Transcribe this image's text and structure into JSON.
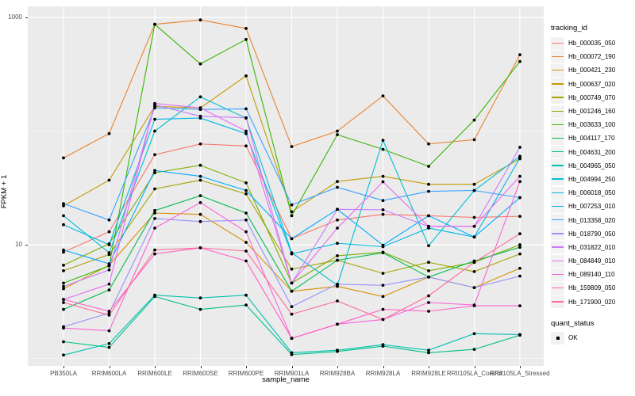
{
  "chart_data": {
    "type": "line",
    "title": "",
    "xlabel": "sample_name",
    "ylabel": "FPKM + 1",
    "y_scale": "log10",
    "ylim": [
      0.9,
      1300
    ],
    "grid": true,
    "legend_position": "right",
    "y_ticks": [
      {
        "label": "1000",
        "value": 1000
      },
      {
        "label": "10",
        "value": 10
      }
    ],
    "y_minor": [
      1,
      100
    ],
    "categories": [
      "PB350LA",
      "RRIM600LA",
      "RRIM600LE",
      "RRIM600SE",
      "RRIM600PE",
      "RRIM901LA",
      "RRIM928BA",
      "RRIM928LA",
      "RRIM928LE",
      "RRII105LA_Control",
      "RRII105LA_Stressed"
    ],
    "legend_title": "tracking_id",
    "series": [
      {
        "name": "Hb_000035_050",
        "color": "#F8766D",
        "values": [
          8.6,
          13,
          62,
          77,
          74,
          11.3,
          16.5,
          18.5,
          18,
          17.4,
          17.8
        ]
      },
      {
        "name": "Hb_000072_190",
        "color": "#EA8331",
        "values": [
          58,
          95,
          870,
          950,
          800,
          73,
          100,
          204,
          77,
          84,
          470
        ]
      },
      {
        "name": "Hb_000421_230",
        "color": "#D89000",
        "values": [
          4.1,
          6.6,
          19,
          18.5,
          10.5,
          3.9,
          4.3,
          3.5,
          5.2,
          4.2,
          6.2
        ]
      },
      {
        "name": "Hb_000637_020",
        "color": "#C09B00",
        "values": [
          22,
          37,
          165,
          160,
          306,
          19.5,
          36,
          40,
          34,
          34,
          57
        ]
      },
      {
        "name": "Hb_000749_070",
        "color": "#A3A500",
        "values": [
          5.9,
          8.2,
          31,
          37,
          28,
          6.1,
          7.3,
          5.6,
          7,
          5.8,
          8.3
        ]
      },
      {
        "name": "Hb_001246_160",
        "color": "#7CAE00",
        "values": [
          6.6,
          10.2,
          43,
          50,
          35,
          4.6,
          8,
          8.6,
          5.9,
          7,
          10
        ]
      },
      {
        "name": "Hb_003633_100",
        "color": "#39B600",
        "values": [
          4.6,
          6.5,
          870,
          390,
          640,
          18,
          93,
          69,
          49,
          125,
          410
        ]
      },
      {
        "name": "Hb_004117_170",
        "color": "#00BB4E",
        "values": [
          2.7,
          4,
          20,
          27,
          19,
          3.9,
          7.3,
          8.5,
          5.2,
          7.2,
          9.5
        ]
      },
      {
        "name": "Hb_004631_200",
        "color": "#00C087",
        "values": [
          1.4,
          1.25,
          3.5,
          2.7,
          2.95,
          1.08,
          1.15,
          1.28,
          1.12,
          1.2,
          1.6
        ]
      },
      {
        "name": "Hb_004965_050",
        "color": "#00C0B2",
        "values": [
          1.07,
          1.35,
          3.6,
          3.4,
          3.6,
          1.12,
          1.18,
          1.32,
          1.18,
          1.65,
          1.62
        ]
      },
      {
        "name": "Hb_004994_250",
        "color": "#00BFD3",
        "values": [
          18,
          8.5,
          100,
          200,
          130,
          8.5,
          4.4,
          83,
          9.8,
          30,
          60
        ]
      },
      {
        "name": "Hb_006018_050",
        "color": "#00B8E7",
        "values": [
          15,
          10,
          127,
          130,
          95,
          8.3,
          10.3,
          9.6,
          14,
          11.7,
          58
        ]
      },
      {
        "name": "Hb_007253_010",
        "color": "#00ACFC",
        "values": [
          9,
          6.8,
          45,
          40,
          30,
          11.3,
          20.5,
          9.9,
          18,
          11.7,
          26
        ]
      },
      {
        "name": "Hb_013358_020",
        "color": "#35A2FF",
        "values": [
          23,
          16.5,
          160,
          155,
          157,
          22.4,
          32,
          24.5,
          29.5,
          30,
          26
        ]
      },
      {
        "name": "Hb_018790_050",
        "color": "#9590FF",
        "values": [
          1.9,
          2.5,
          17,
          16,
          16.5,
          2.85,
          4.5,
          4.4,
          5.2,
          4.2,
          5.3
        ]
      },
      {
        "name": "Hb_031822_010",
        "color": "#C77CFF",
        "values": [
          4.3,
          6,
          170,
          135,
          131,
          4.6,
          20.5,
          20.3,
          14.5,
          14.5,
          72
        ]
      },
      {
        "name": "Hb_084849_010",
        "color": "#E76BF3",
        "values": [
          3.3,
          4.5,
          175,
          160,
          100,
          4.6,
          14,
          35.8,
          14.5,
          14.5,
          40
        ]
      },
      {
        "name": "Hb_089140_110",
        "color": "#FA62DB",
        "values": [
          1.85,
          1.75,
          14,
          23.5,
          13,
          1.5,
          2,
          2.2,
          3.1,
          2.95,
          36
        ]
      },
      {
        "name": "Hb_159809_050",
        "color": "#FF61C9",
        "values": [
          3.3,
          2.6,
          8.3,
          9.4,
          7.2,
          1.5,
          2,
          2.7,
          2.6,
          2.9,
          2.9
        ]
      },
      {
        "name": "Hb_171900_020",
        "color": "#FF6A98",
        "values": [
          3.1,
          2.4,
          9,
          9.4,
          8.8,
          2.45,
          3.2,
          2.2,
          3.55,
          7,
          12.5
        ]
      }
    ],
    "quant_legend": {
      "title": "quant_status",
      "entries": [
        {
          "label": "OK",
          "marker": "black-point"
        }
      ]
    }
  }
}
